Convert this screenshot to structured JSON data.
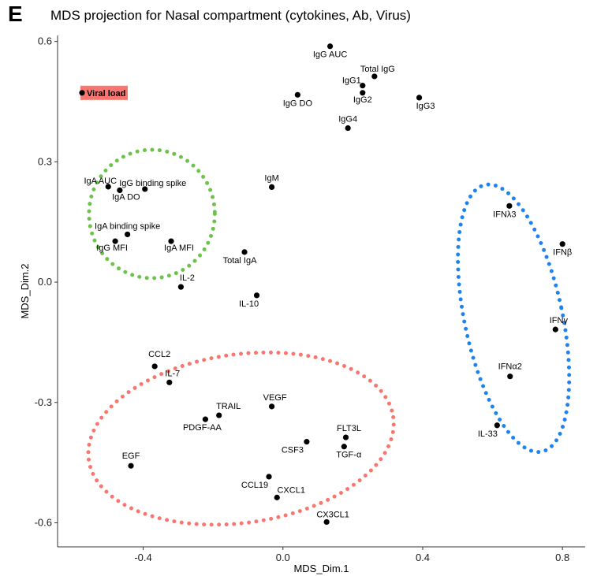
{
  "panel_letter": "E",
  "chart_data": {
    "type": "scatter",
    "title": "MDS projection for Nasal compartment (cytokines, Ab, Virus)",
    "xlabel": "MDS_Dim.1",
    "ylabel": "MDS_Dim.2",
    "xlim": [
      -0.645,
      0.865
    ],
    "ylim": [
      -0.66,
      0.615
    ],
    "xticks": [
      -0.4,
      0.0,
      0.4,
      0.8
    ],
    "xtick_labels": [
      "-0.4",
      "0.0",
      "0.4",
      "0.8"
    ],
    "yticks": [
      -0.6,
      -0.3,
      0.0,
      0.3,
      0.6
    ],
    "ytick_labels": [
      "-0.6",
      "-0.3",
      "0.0",
      "0.3",
      "0.6"
    ],
    "grid": false,
    "point_color": "#000000",
    "points": [
      {
        "label": "Viral load",
        "x": -0.575,
        "y": 0.472,
        "dx": 6,
        "dy": 4,
        "anchor": "start",
        "highlight": true,
        "highlight_color": "#f8766d"
      },
      {
        "label": "IgG AUC",
        "x": 0.135,
        "y": 0.588,
        "dx": 0,
        "dy": 14,
        "anchor": "middle"
      },
      {
        "label": "Total IgG",
        "x": 0.262,
        "y": 0.513,
        "dx": 4,
        "dy": -6,
        "anchor": "middle"
      },
      {
        "label": "IgG1",
        "x": 0.228,
        "y": 0.49,
        "dx": -14,
        "dy": -3,
        "anchor": "middle"
      },
      {
        "label": "IgG2",
        "x": 0.228,
        "y": 0.472,
        "dx": 0,
        "dy": 12,
        "anchor": "middle"
      },
      {
        "label": "IgG DO",
        "x": 0.042,
        "y": 0.467,
        "dx": 0,
        "dy": 14,
        "anchor": "middle"
      },
      {
        "label": "IgG3",
        "x": 0.39,
        "y": 0.46,
        "dx": 8,
        "dy": 14,
        "anchor": "middle"
      },
      {
        "label": "IgG4",
        "x": 0.186,
        "y": 0.384,
        "dx": 0,
        "dy": -8,
        "anchor": "middle"
      },
      {
        "label": "IgA AUC",
        "x": -0.5,
        "y": 0.238,
        "dx": -10,
        "dy": -4,
        "anchor": "middle"
      },
      {
        "label": "IgG binding spike",
        "x": -0.395,
        "y": 0.232,
        "dx": 10,
        "dy": -4,
        "anchor": "middle"
      },
      {
        "label": "IgA DO",
        "x": -0.467,
        "y": 0.229,
        "dx": 8,
        "dy": 12,
        "anchor": "middle"
      },
      {
        "label": "IgM",
        "x": -0.032,
        "y": 0.237,
        "dx": 0,
        "dy": -8,
        "anchor": "middle"
      },
      {
        "label": "IFNλ3",
        "x": 0.648,
        "y": 0.19,
        "dx": -6,
        "dy": 14,
        "anchor": "middle"
      },
      {
        "label": "IgA binding spike",
        "x": -0.445,
        "y": 0.119,
        "dx": 0,
        "dy": -7,
        "anchor": "middle"
      },
      {
        "label": "IgG MFI",
        "x": -0.48,
        "y": 0.102,
        "dx": -4,
        "dy": 12,
        "anchor": "middle"
      },
      {
        "label": "IgA MFI",
        "x": -0.32,
        "y": 0.102,
        "dx": 10,
        "dy": 12,
        "anchor": "middle"
      },
      {
        "label": "IFNβ",
        "x": 0.8,
        "y": 0.095,
        "dx": 0,
        "dy": 14,
        "anchor": "middle"
      },
      {
        "label": "Total IgA",
        "x": -0.11,
        "y": 0.075,
        "dx": -6,
        "dy": 14,
        "anchor": "middle"
      },
      {
        "label": "IL-2",
        "x": -0.292,
        "y": -0.012,
        "dx": 8,
        "dy": -8,
        "anchor": "middle"
      },
      {
        "label": "IL-10",
        "x": -0.075,
        "y": -0.033,
        "dx": -10,
        "dy": 14,
        "anchor": "middle"
      },
      {
        "label": "IFNγ",
        "x": 0.78,
        "y": -0.118,
        "dx": 4,
        "dy": -8,
        "anchor": "middle"
      },
      {
        "label": "CCL2",
        "x": -0.367,
        "y": -0.21,
        "dx": 6,
        "dy": -12,
        "anchor": "middle"
      },
      {
        "label": "IFNα2",
        "x": 0.65,
        "y": -0.235,
        "dx": 0,
        "dy": -9,
        "anchor": "middle"
      },
      {
        "label": "IL-7",
        "x": -0.325,
        "y": -0.25,
        "dx": 4,
        "dy": -8,
        "anchor": "middle"
      },
      {
        "label": "VEGF",
        "x": -0.032,
        "y": -0.31,
        "dx": 4,
        "dy": -8,
        "anchor": "middle"
      },
      {
        "label": "TRAIL",
        "x": -0.183,
        "y": -0.332,
        "dx": 12,
        "dy": -8,
        "anchor": "middle"
      },
      {
        "label": "PDGF-AA",
        "x": -0.222,
        "y": -0.342,
        "dx": -4,
        "dy": 14,
        "anchor": "middle"
      },
      {
        "label": "IL-33",
        "x": 0.613,
        "y": -0.357,
        "dx": -12,
        "dy": 14,
        "anchor": "middle"
      },
      {
        "label": "FLT3L",
        "x": 0.18,
        "y": -0.387,
        "dx": 4,
        "dy": -8,
        "anchor": "middle"
      },
      {
        "label": "CSF3",
        "x": 0.068,
        "y": -0.398,
        "dx": -18,
        "dy": 14,
        "anchor": "middle"
      },
      {
        "label": "TGF-α",
        "x": 0.175,
        "y": -0.41,
        "dx": 6,
        "dy": 14,
        "anchor": "middle"
      },
      {
        "label": "EGF",
        "x": -0.435,
        "y": -0.458,
        "dx": 0,
        "dy": -9,
        "anchor": "middle"
      },
      {
        "label": "CCL19",
        "x": -0.04,
        "y": -0.485,
        "dx": -18,
        "dy": 14,
        "anchor": "middle"
      },
      {
        "label": "CXCL1",
        "x": -0.017,
        "y": -0.537,
        "dx": 18,
        "dy": -6,
        "anchor": "middle"
      },
      {
        "label": "CX3CL1",
        "x": 0.125,
        "y": -0.598,
        "dx": 8,
        "dy": -6,
        "anchor": "middle"
      }
    ],
    "clusters": [
      {
        "name": "green",
        "color": "#6cc24a",
        "cx": -0.375,
        "cy": 0.17,
        "rx": 0.18,
        "ry": 0.16,
        "angle_deg": 0
      },
      {
        "name": "red",
        "color": "#f8766d",
        "cx": -0.12,
        "cy": -0.39,
        "rx": 0.44,
        "ry": 0.21,
        "angle_deg": -8
      },
      {
        "name": "blue",
        "color": "#1f83ee",
        "cx": 0.66,
        "cy": -0.09,
        "rx": 0.14,
        "ry": 0.34,
        "angle_deg": -12
      }
    ]
  }
}
